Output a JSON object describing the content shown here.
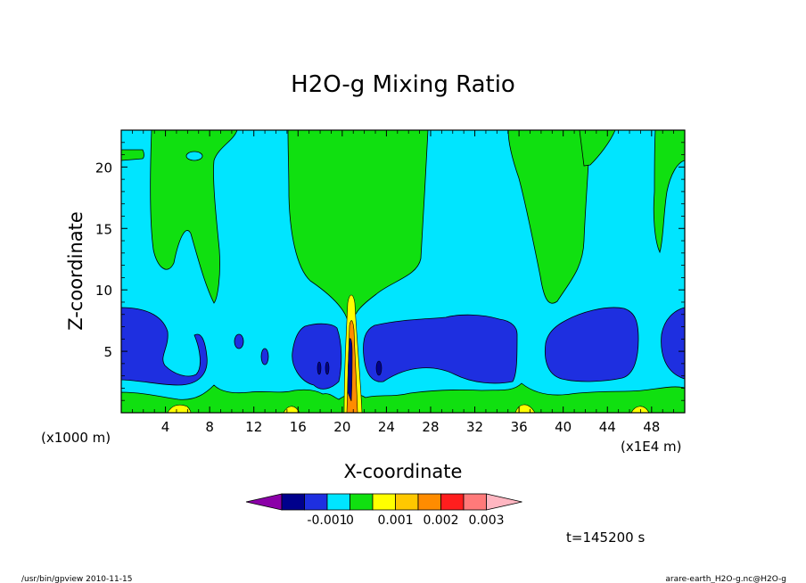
{
  "chart_data": {
    "type": "contour",
    "title": "H2O-g Mixing Ratio",
    "xlabel": "X-coordinate",
    "ylabel": "Z-coordinate",
    "x_unit_left": "(x1000 m)",
    "x_unit_right": "(x1E4 m)",
    "xlim": [
      0,
      51
    ],
    "ylim": [
      0,
      23
    ],
    "x_ticks": [
      "4",
      "8",
      "12",
      "16",
      "20",
      "24",
      "28",
      "32",
      "36",
      "40",
      "44",
      "48"
    ],
    "y_ticks": [
      "5",
      "10",
      "15",
      "20"
    ],
    "time_label": "t=145200  s",
    "colorbar": {
      "labels": [
        "-0.001",
        "0",
        "0.001",
        "0.002",
        "0.003"
      ],
      "colors": [
        "#8b00a8",
        "#00008c",
        "#1e2fe0",
        "#00e5ff",
        "#10e010",
        "#ffff00",
        "#ffc800",
        "#ff8c00",
        "#ff1e1e",
        "#ff7a7a",
        "#ffb6c1"
      ]
    },
    "footer_left": "/usr/bin/gpview   2010-11-15",
    "footer_right": "arare-earth_H2O-g.nc@H2O-g"
  }
}
